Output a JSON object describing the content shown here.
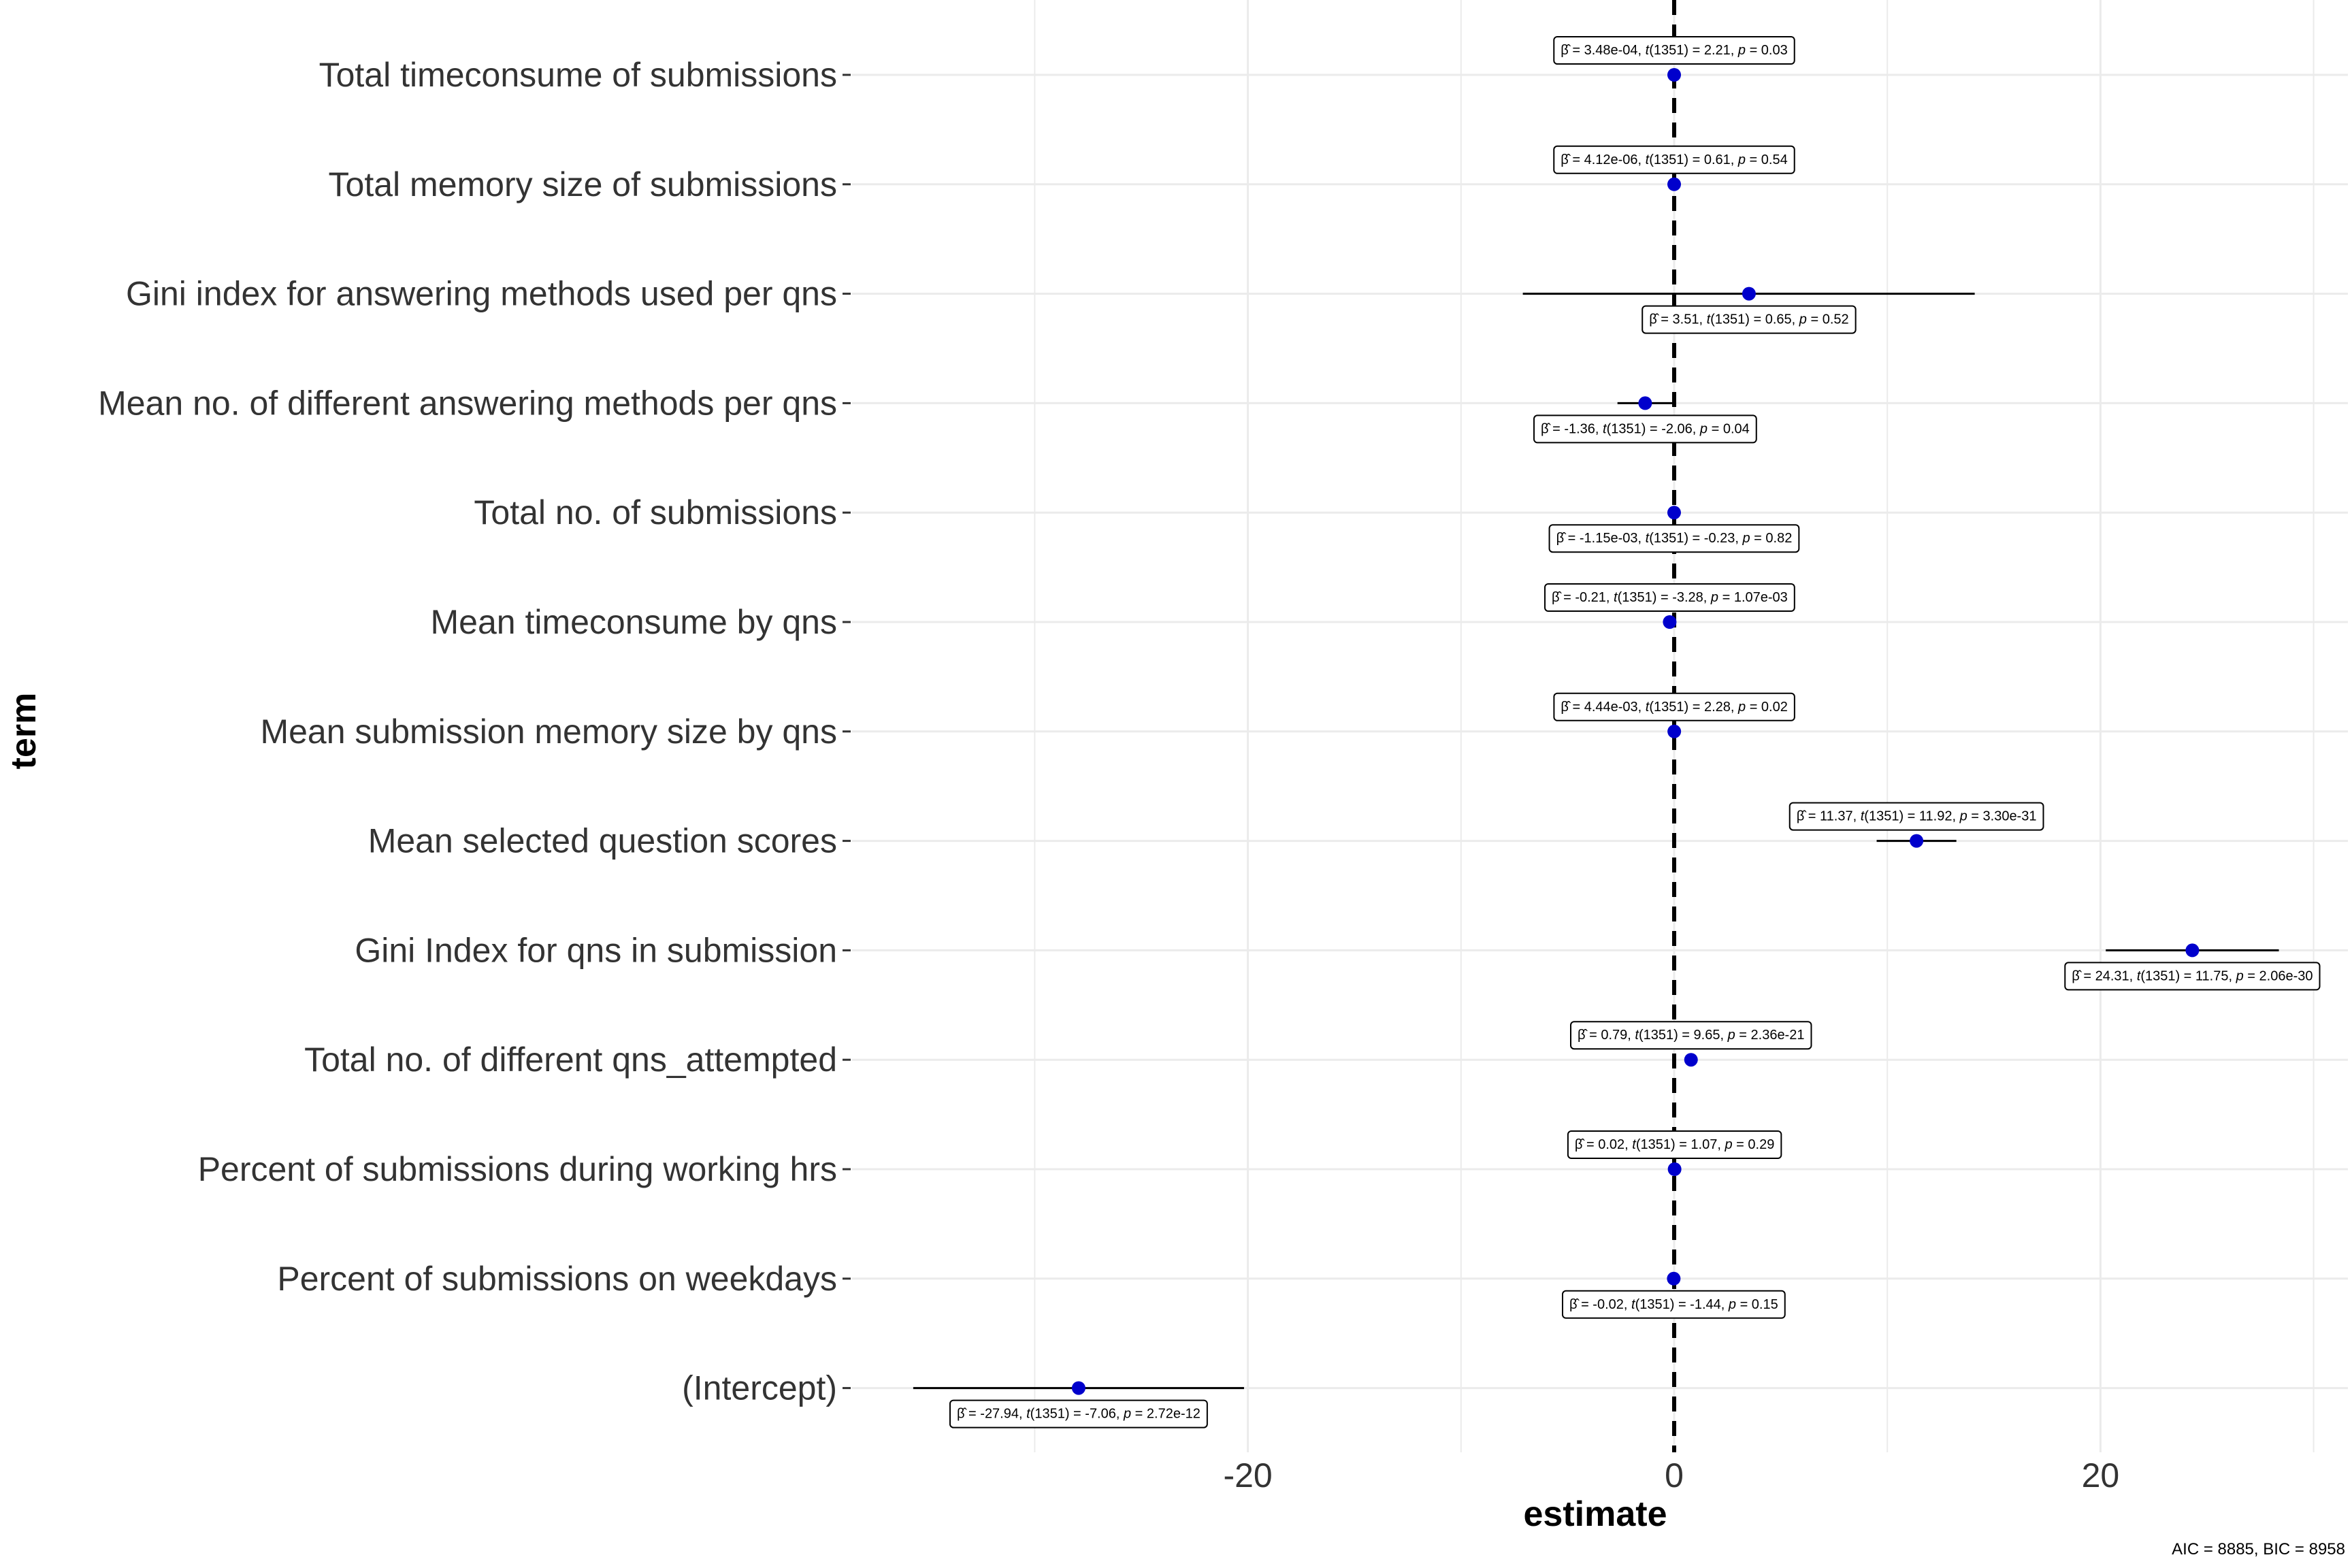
{
  "chart_data": {
    "type": "scatter",
    "subtype": "coefficient-plot",
    "xlabel": "estimate",
    "ylabel": "term",
    "xlim": [
      -35.7,
      31.9
    ],
    "xticks": [
      -20,
      0,
      20
    ],
    "xtick_labels": [
      "-20",
      "0",
      "20"
    ],
    "reference_line": 0,
    "grid": true,
    "point_color": "#0000CC",
    "footnote": "AIC = 8885, BIC = 8958",
    "terms": [
      {
        "label": "Total timeconsume of submissions",
        "estimate": 0.000348,
        "ci": [
          4e-05,
          0.00066
        ],
        "annotation": {
          "beta": "3.48e-04",
          "df": "1351",
          "t": "2.21",
          "p": "0.03"
        },
        "label_pos": "above"
      },
      {
        "label": "Total memory size of submissions",
        "estimate": 4.12e-06,
        "ci": [
          -9e-06,
          1.7e-05
        ],
        "annotation": {
          "beta": "4.12e-06",
          "df": "1351",
          "t": "0.61",
          "p": "0.54"
        },
        "label_pos": "above"
      },
      {
        "label": "Gini index for answering methods used per qns",
        "estimate": 3.51,
        "ci": [
          -7.1,
          14.1
        ],
        "annotation": {
          "beta": "3.51",
          "df": "1351",
          "t": "0.65",
          "p": "0.52"
        },
        "label_pos": "below"
      },
      {
        "label": "Mean no. of different answering methods per qns",
        "estimate": -1.36,
        "ci": [
          -2.66,
          -0.06
        ],
        "annotation": {
          "beta": "-1.36",
          "df": "1351",
          "t": "-2.06",
          "p": "0.04"
        },
        "label_pos": "below"
      },
      {
        "label": "Total no. of submissions",
        "estimate": -0.00115,
        "ci": [
          -0.011,
          0.0087
        ],
        "annotation": {
          "beta": "-1.15e-03",
          "df": "1351",
          "t": "-0.23",
          "p": "0.82"
        },
        "label_pos": "below"
      },
      {
        "label": "Mean timeconsume by qns",
        "estimate": -0.21,
        "ci": [
          -0.34,
          -0.08
        ],
        "annotation": {
          "beta": "-0.21",
          "df": "1351",
          "t": "-3.28",
          "p": "1.07e-03"
        },
        "label_pos": "above"
      },
      {
        "label": "Mean submission memory size by qns",
        "estimate": 0.00444,
        "ci": [
          0.0006,
          0.0083
        ],
        "annotation": {
          "beta": "4.44e-03",
          "df": "1351",
          "t": "2.28",
          "p": "0.02"
        },
        "label_pos": "above"
      },
      {
        "label": "Mean selected question scores",
        "estimate": 11.37,
        "ci": [
          9.5,
          13.24
        ],
        "annotation": {
          "beta": "11.37",
          "df": "1351",
          "t": "11.92",
          "p": "3.30e-31"
        },
        "label_pos": "above"
      },
      {
        "label": "Gini Index for qns in submission",
        "estimate": 24.31,
        "ci": [
          20.25,
          28.37
        ],
        "annotation": {
          "beta": "24.31",
          "df": "1351",
          "t": "11.75",
          "p": "2.06e-30"
        },
        "label_pos": "below"
      },
      {
        "label": "Total no. of different qns_attempted",
        "estimate": 0.79,
        "ci": [
          0.63,
          0.95
        ],
        "annotation": {
          "beta": "0.79",
          "df": "1351",
          "t": "9.65",
          "p": "2.36e-21"
        },
        "label_pos": "above"
      },
      {
        "label": "Percent of submissions during working hrs",
        "estimate": 0.02,
        "ci": [
          -0.017,
          0.057
        ],
        "annotation": {
          "beta": "0.02",
          "df": "1351",
          "t": "1.07",
          "p": "0.29"
        },
        "label_pos": "above"
      },
      {
        "label": "Percent of submissions on weekdays",
        "estimate": -0.02,
        "ci": [
          -0.047,
          0.007
        ],
        "annotation": {
          "beta": "-0.02",
          "df": "1351",
          "t": "-1.44",
          "p": "0.15"
        },
        "label_pos": "below"
      },
      {
        "label": "(Intercept)",
        "estimate": -27.94,
        "ci": [
          -35.7,
          -20.18
        ],
        "annotation": {
          "beta": "-27.94",
          "df": "1351",
          "t": "-7.06",
          "p": "2.72e-12"
        },
        "label_pos": "below"
      }
    ]
  }
}
